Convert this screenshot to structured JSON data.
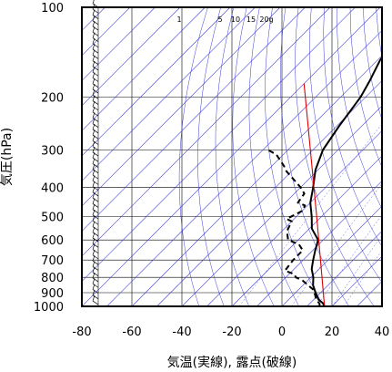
{
  "chart_data": {
    "type": "line",
    "title": "",
    "xlabel": "気温(実線), 露点(破線)",
    "ylabel": "気圧(hPa)",
    "xlim": [
      -80,
      40
    ],
    "ylim": [
      1000,
      100
    ],
    "y_scale": "log",
    "x_ticks": [
      "-80",
      "-60",
      "-40",
      "-20",
      "0",
      "20",
      "40"
    ],
    "y_ticks": [
      "100",
      "200",
      "300",
      "400",
      "500",
      "600",
      "700",
      "800",
      "900",
      "1000"
    ],
    "mixing_ratio_labels": [
      "1",
      "5",
      "10",
      "15",
      "20g"
    ],
    "series": [
      {
        "style": "solid",
        "color": "#000000",
        "pressure": [
          1000,
          975,
          950,
          925,
          900,
          850,
          800,
          750,
          700,
          650,
          600,
          550,
          500,
          450,
          400,
          350,
          300,
          250,
          200,
          175,
          150,
          130,
          115,
          105,
          100
        ],
        "values": [
          17,
          15,
          12,
          10,
          8,
          4,
          1,
          -3,
          -6,
          -9,
          -12,
          -19,
          -24,
          -30,
          -35,
          -41,
          -46,
          -49,
          -52,
          -55,
          -59,
          -61,
          -63,
          -63,
          -63
        ]
      },
      {
        "style": "dashed",
        "color": "#000000",
        "pressure": [
          1000,
          980,
          950,
          920,
          880,
          850,
          820,
          800,
          780,
          760,
          700,
          650,
          620,
          600,
          570,
          560,
          520,
          510,
          480,
          460,
          450,
          420,
          400,
          380,
          350,
          340,
          310,
          300
        ],
        "values": [
          15,
          14,
          11,
          9,
          6,
          2,
          -2,
          -6,
          -8,
          -13,
          -14,
          -14,
          -18,
          -24,
          -27,
          -28,
          -30,
          -33,
          -30,
          -31,
          -35,
          -36,
          -40,
          -45,
          -53,
          -55,
          -63,
          -68
        ]
      },
      {
        "style": "solid",
        "color": "#dd0000",
        "pressure": [
          1000,
          500,
          180
        ],
        "values": [
          17,
          -22,
          -80
        ]
      }
    ]
  }
}
